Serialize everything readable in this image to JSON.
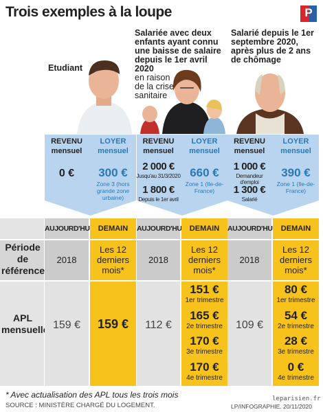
{
  "header": {
    "title": "Trois exemples à la loupe",
    "logo": "P"
  },
  "labels": {
    "revenu": "REVENU",
    "loyer": "LOYER",
    "mensuel": "mensuel",
    "today": "AUJOURD'HUI",
    "tomorrow": "DEMAIN",
    "period": "Période de référence",
    "apl": "APL mensuelle"
  },
  "profiles": [
    {
      "title": "Etudiant",
      "revenu": [
        {
          "amount": "0 €"
        }
      ],
      "loyer": "300 €",
      "loyer_note": "Zone 3 (hors grande zone urbaine)",
      "period_today": "2018",
      "period_tomorrow": "Les 12 derniers mois*",
      "apl_today": "159 €",
      "apl_tomorrow": [
        {
          "amount": "159 €"
        }
      ]
    },
    {
      "title": "Salariée avec deux enfants ayant connu une baisse de salaire depuis le 1er avril 2020",
      "subtitle": "en raison de la crise sanitaire",
      "revenu": [
        {
          "amount": "2 000 €",
          "note": "Jusqu'au 31/3/2020"
        },
        {
          "amount": "1 800 €",
          "note": "Depuis le 1er avril"
        }
      ],
      "loyer": "660 €",
      "loyer_note": "Zone 1 (Ile-de-France)",
      "period_today": "2018",
      "period_tomorrow": "Les 12 derniers mois*",
      "apl_today": "112 €",
      "apl_tomorrow": [
        {
          "amount": "151 €",
          "note": "1er trimestre"
        },
        {
          "amount": "165 €",
          "note": "2e trimestre"
        },
        {
          "amount": "170 €",
          "note": "3e trimestre"
        },
        {
          "amount": "170 €",
          "note": "4e trimestre"
        }
      ]
    },
    {
      "title": "Salarié depuis le 1er septembre 2020, après plus de 2 ans de chômage",
      "revenu": [
        {
          "amount": "1 000 €",
          "note": "Demandeur d'emploi"
        },
        {
          "amount": "1 300 €",
          "note": "Salarié"
        }
      ],
      "loyer": "390 €",
      "loyer_note": "Zone 1 (Ile-de-France)",
      "period_today": "2018",
      "period_tomorrow": "Les 12 derniers mois*",
      "apl_today": "109 €",
      "apl_tomorrow": [
        {
          "amount": "80 €",
          "note": "1er trimestre"
        },
        {
          "amount": "54 €",
          "note": "2e trimestre"
        },
        {
          "amount": "28 €",
          "note": "3e trimestre"
        },
        {
          "amount": "0 €",
          "note": "4e trimestre"
        }
      ]
    }
  ],
  "footer": {
    "note": "* Avec actualisation des APL tous les trois mois",
    "source": "SOURCE : MINISTÈRE CHARGÉ DU LOGEMENT.",
    "site": "leparisien.fr",
    "credit": "LP/INFOGRAPHIE. 20/11/2020"
  }
}
